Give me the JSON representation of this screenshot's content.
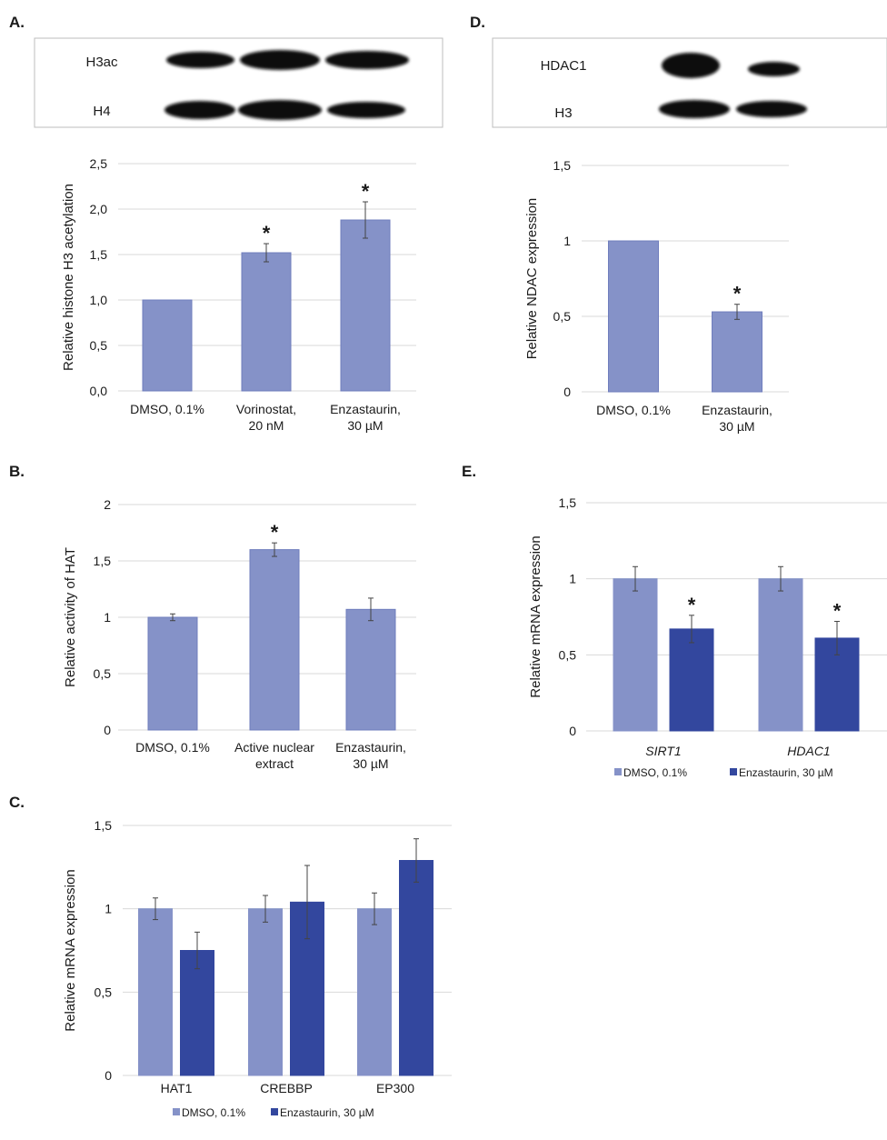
{
  "colors": {
    "dmso": "#8592c8",
    "enzastaurin": "#33479e",
    "grid": "#d9d9d9",
    "band": "#0a0a0a"
  },
  "blots": [
    {
      "panel": "A",
      "rows": [
        "H3ac",
        "H4"
      ]
    },
    {
      "panel": "D",
      "rows": [
        "HDAC1",
        "H3"
      ]
    }
  ],
  "chart_data": [
    {
      "panel": "A.",
      "type": "bar",
      "ylabel": "Relative histone H3 acetylation",
      "ylim": [
        0,
        2.5
      ],
      "yticks": [
        "0,0",
        "0,5",
        "1,0",
        "1,5",
        "2,0",
        "2,5"
      ],
      "grid": true,
      "categories": [
        [
          "DMSO, 0.1%"
        ],
        [
          "Vorinostat,",
          "20 nM"
        ],
        [
          "Enzastaurin,",
          "30 µM"
        ]
      ],
      "series": [
        {
          "values": [
            1.0,
            1.52,
            1.88
          ],
          "errors": [
            0,
            0.1,
            0.2
          ],
          "significant": [
            false,
            true,
            true
          ],
          "color": "#8592c8"
        }
      ]
    },
    {
      "panel": "B.",
      "type": "bar",
      "ylabel": "Relative activity of HAT",
      "ylim": [
        0,
        2
      ],
      "yticks": [
        "0",
        "0,5",
        "1",
        "1,5",
        "2"
      ],
      "grid": true,
      "categories": [
        [
          "DMSO, 0.1%"
        ],
        [
          "Active nuclear",
          "extract"
        ],
        [
          "Enzastaurin,",
          "30 µM"
        ]
      ],
      "series": [
        {
          "values": [
            1.0,
            1.6,
            1.07
          ],
          "errors": [
            0.03,
            0.06,
            0.1
          ],
          "significant": [
            false,
            true,
            false
          ],
          "color": "#8592c8"
        }
      ]
    },
    {
      "panel": "C.",
      "type": "bar",
      "ylabel": "Relative mRNA expression",
      "ylim": [
        0,
        1.5
      ],
      "yticks": [
        "0",
        "0,5",
        "1",
        "1,5"
      ],
      "grid": true,
      "legend": "bottom",
      "categories": [
        [
          "HAT1"
        ],
        [
          "CREBBP"
        ],
        [
          "EP300"
        ]
      ],
      "series": [
        {
          "name": "DMSO, 0.1%",
          "values": [
            1,
            1,
            1
          ],
          "errors": [
            0.065,
            0.08,
            0.095
          ],
          "significant": [
            false,
            false,
            false
          ],
          "color": "#8592c8"
        },
        {
          "name": "Enzastaurin, 30 µM",
          "values": [
            0.75,
            1.04,
            1.29
          ],
          "errors": [
            0.11,
            0.22,
            0.13
          ],
          "significant": [
            false,
            false,
            false
          ],
          "color": "#33479e"
        }
      ]
    },
    {
      "panel": "D.",
      "type": "bar",
      "ylabel": "Relative NDAC expression",
      "ylim": [
        0,
        1.5
      ],
      "yticks": [
        "0",
        "0,5",
        "1",
        "1,5"
      ],
      "grid": true,
      "categories": [
        [
          "DMSO, 0.1%"
        ],
        [
          "Enzastaurin,",
          "30 µM"
        ]
      ],
      "series": [
        {
          "values": [
            1.0,
            0.53
          ],
          "errors": [
            0,
            0.05
          ],
          "significant": [
            false,
            true
          ],
          "color": "#8592c8"
        }
      ]
    },
    {
      "panel": "E.",
      "type": "bar",
      "ylabel": "Relative mRNA expression",
      "ylim": [
        0,
        1.5
      ],
      "yticks": [
        "0",
        "0,5",
        "1",
        "1,5"
      ],
      "grid": true,
      "legend": "bottom",
      "categories": [
        [
          "SIRT1"
        ],
        [
          "HDAC1"
        ]
      ],
      "italic_categories": true,
      "series": [
        {
          "name": "DMSO, 0.1%",
          "values": [
            1,
            1
          ],
          "errors": [
            0.08,
            0.08
          ],
          "significant": [
            false,
            false
          ],
          "color": "#8592c8"
        },
        {
          "name": "Enzastaurin, 30 µM",
          "values": [
            0.67,
            0.61
          ],
          "errors": [
            0.09,
            0.11
          ],
          "significant": [
            true,
            true
          ],
          "color": "#33479e"
        }
      ]
    }
  ],
  "significance_marker": "*"
}
